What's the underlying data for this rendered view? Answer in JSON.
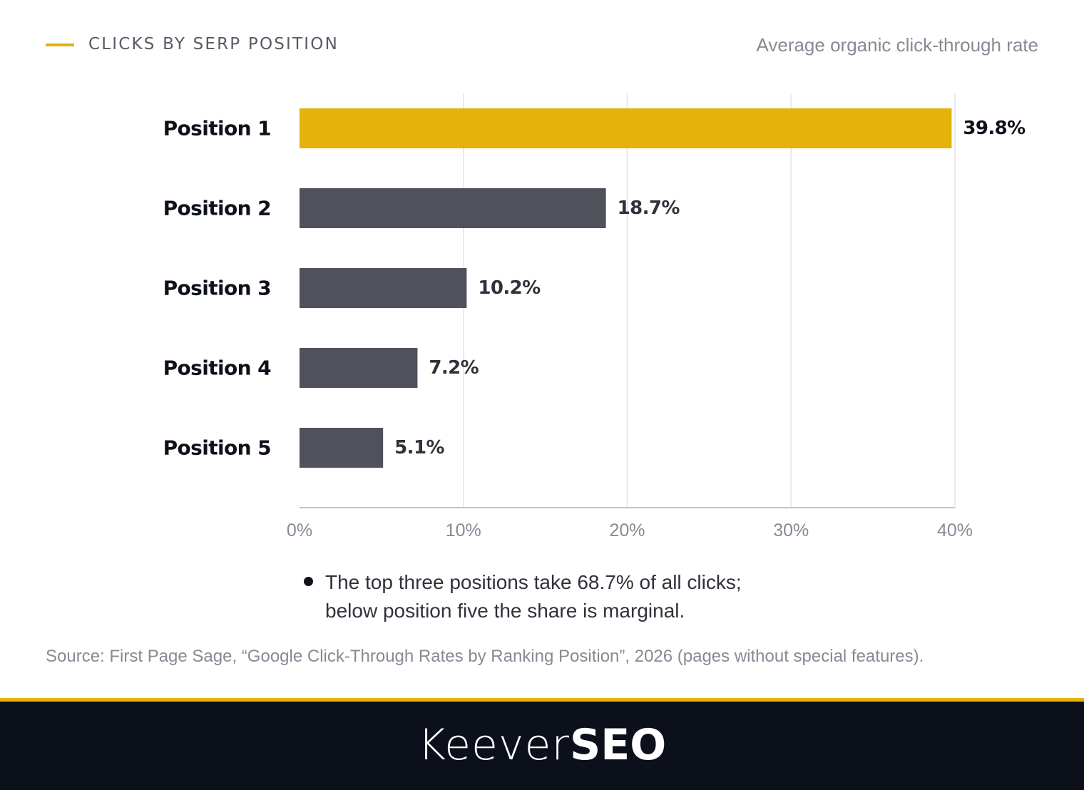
{
  "header": {
    "title": "CLICKS BY SERP POSITION",
    "subtitle": "Average organic click-through rate"
  },
  "chart_data": {
    "type": "bar",
    "orientation": "horizontal",
    "categories": [
      "Position 1",
      "Position 2",
      "Position 3",
      "Position 4",
      "Position 5"
    ],
    "values": [
      39.8,
      18.7,
      10.2,
      7.2,
      5.1
    ],
    "value_labels": [
      "39.8%",
      "18.7%",
      "10.2%",
      "7.2%",
      "5.1%"
    ],
    "xlim": [
      0,
      40
    ],
    "x_ticks": [
      0,
      10,
      20,
      30,
      40
    ],
    "x_tick_labels": [
      "0%",
      "10%",
      "20%",
      "30%",
      "40%"
    ],
    "grid": true,
    "highlight_index": 0,
    "colors": {
      "highlight": "#e5b10b",
      "bar": "#4f515b",
      "grid": "#e3e4e7",
      "axis": "#c3c5ca",
      "category_text": "#0d111a",
      "value_text": "#2f323a",
      "tick_text": "#868a94"
    }
  },
  "note": {
    "lines": [
      "The top three positions take 68.7% of all clicks;",
      "below position five the share is marginal."
    ]
  },
  "source": "Source: First Page Sage, “Google Click-Through Rates by Ranking Position”, 2026 (pages without special features).",
  "footer": {
    "logo_light": "Keever",
    "logo_bold": "SEO"
  }
}
